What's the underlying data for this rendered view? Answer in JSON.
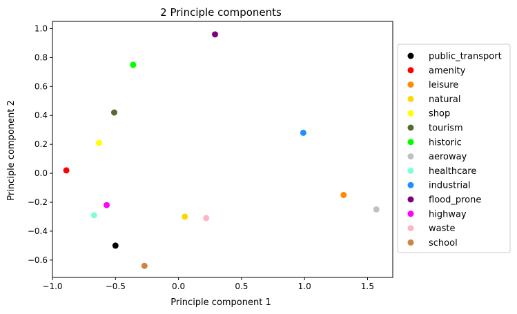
{
  "chart_data": {
    "type": "scatter",
    "title": "2 Principle components",
    "xlabel": "Principle component 1",
    "ylabel": "Principle component 2",
    "xlim": [
      -1.0,
      1.7
    ],
    "ylim": [
      -0.72,
      1.05
    ],
    "x_ticks": [
      -1.0,
      -0.5,
      0.0,
      0.5,
      1.0,
      1.5
    ],
    "x_tick_labels": [
      "−1.0",
      "−0.5",
      "0.0",
      "0.5",
      "1.0",
      "1.5"
    ],
    "y_ticks": [
      -0.6,
      -0.4,
      -0.2,
      0.0,
      0.2,
      0.4,
      0.6,
      0.8,
      1.0
    ],
    "y_tick_labels": [
      "−0.6",
      "−0.4",
      "−0.2",
      "0.0",
      "0.2",
      "0.4",
      "0.6",
      "0.8",
      "1.0"
    ],
    "grid": false,
    "legend_position": "right, outside plot",
    "series": [
      {
        "name": "public_transport",
        "color": "#000000",
        "x": -0.5,
        "y": -0.5
      },
      {
        "name": "amenity",
        "color": "#ff0000",
        "x": -0.89,
        "y": 0.02
      },
      {
        "name": "leisure",
        "color": "#ff8c00",
        "x": 1.31,
        "y": -0.15
      },
      {
        "name": "natural",
        "color": "#ffd700",
        "x": 0.05,
        "y": -0.3
      },
      {
        "name": "shop",
        "color": "#ffff00",
        "x": -0.63,
        "y": 0.21
      },
      {
        "name": "tourism",
        "color": "#556b2f",
        "x": -0.51,
        "y": 0.42
      },
      {
        "name": "historic",
        "color": "#00ff00",
        "x": -0.36,
        "y": 0.75
      },
      {
        "name": "aeroway",
        "color": "#c0c0c0",
        "x": 1.57,
        "y": -0.25
      },
      {
        "name": "healthcare",
        "color": "#7fffd4",
        "x": -0.67,
        "y": -0.29
      },
      {
        "name": "industrial",
        "color": "#1e90ff",
        "x": 0.99,
        "y": 0.28
      },
      {
        "name": "flood_prone",
        "color": "#800080",
        "x": 0.29,
        "y": 0.96
      },
      {
        "name": "highway",
        "color": "#ff00ff",
        "x": -0.57,
        "y": -0.22
      },
      {
        "name": "waste",
        "color": "#ffb6c1",
        "x": 0.22,
        "y": -0.31
      },
      {
        "name": "school",
        "color": "#cd853f",
        "x": -0.27,
        "y": -0.64
      }
    ]
  }
}
